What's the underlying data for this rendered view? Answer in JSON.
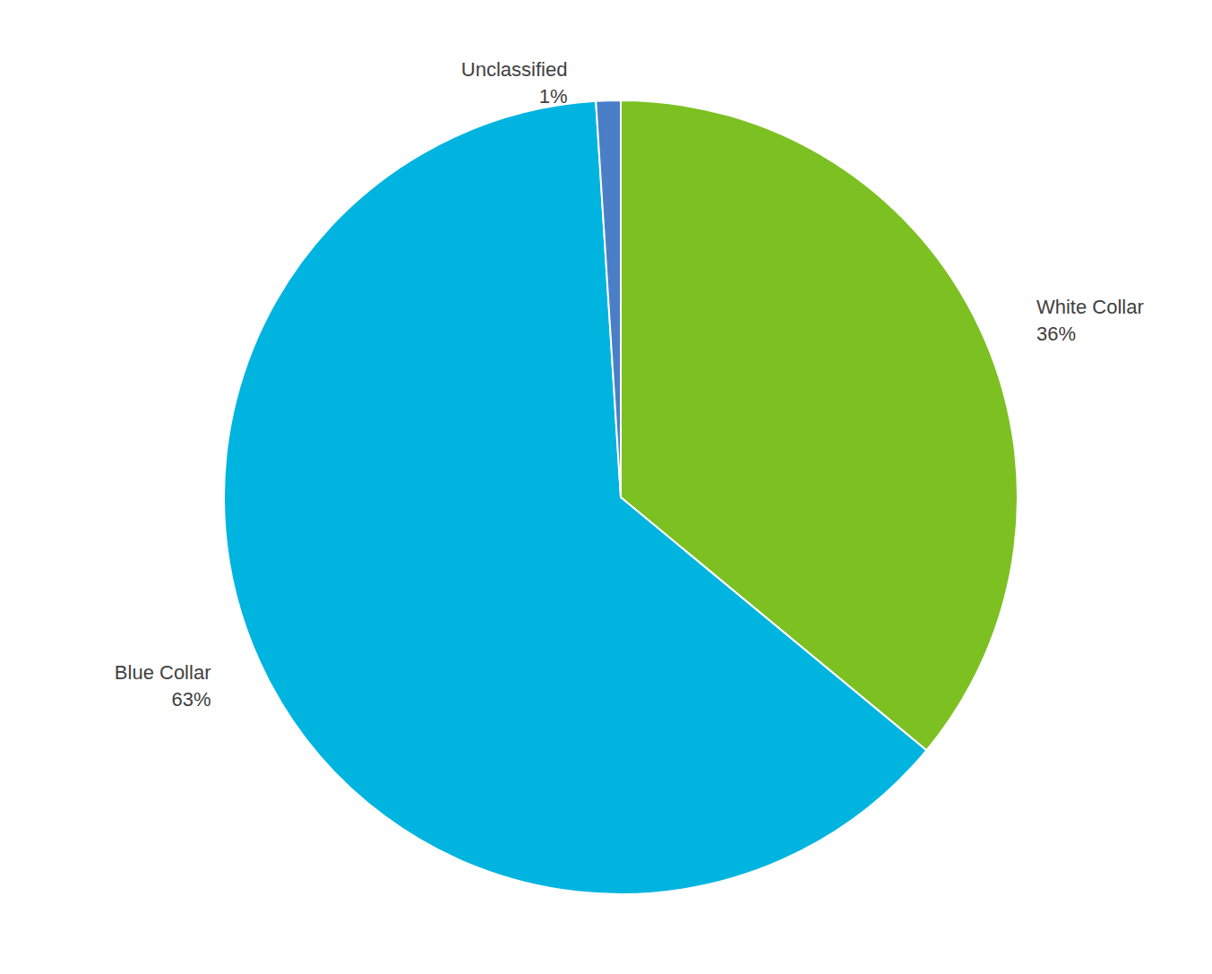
{
  "chart_data": {
    "type": "pie",
    "categories": [
      "White Collar",
      "Blue Collar",
      "Unclassified"
    ],
    "values": [
      36,
      63,
      1
    ],
    "value_labels": [
      "36%",
      "63%",
      "1%"
    ],
    "colors": [
      "#7cc022",
      "#00b4e0",
      "#4a7ec7"
    ],
    "data_labels": true
  }
}
